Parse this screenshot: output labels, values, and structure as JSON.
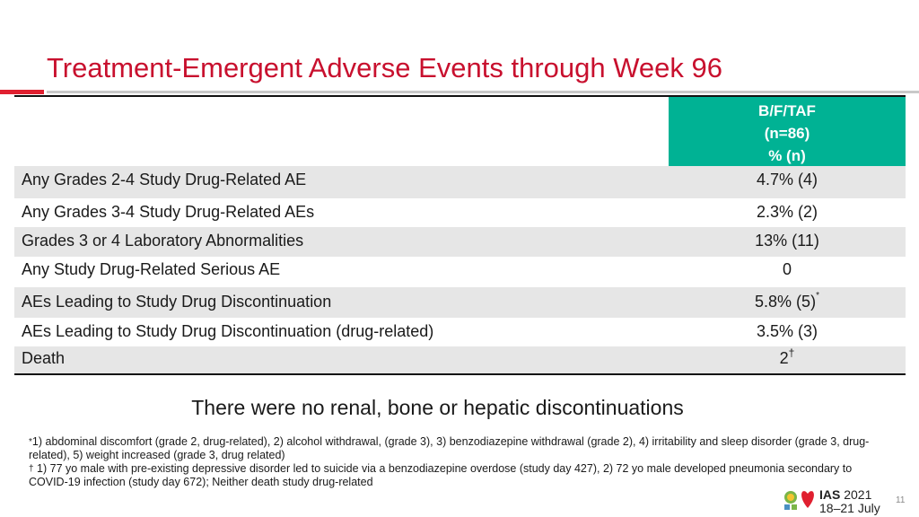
{
  "title": "Treatment-Emergent Adverse Events through Week 96",
  "table": {
    "header": [
      "B/F/TAF",
      "(n=86)",
      "% (n)"
    ],
    "rows": [
      {
        "label": "Any Grades 2-4 Study Drug-Related AE",
        "value": "4.7% (4)",
        "mark": ""
      },
      {
        "label": "Any Grades 3-4 Study Drug-Related AEs",
        "value": "2.3% (2)",
        "mark": ""
      },
      {
        "label": "Grades 3 or 4 Laboratory Abnormalities",
        "value": "13% (11)",
        "mark": ""
      },
      {
        "label": "Any Study Drug-Related Serious AE",
        "value": "0",
        "mark": ""
      },
      {
        "label": "AEs Leading to Study Drug Discontinuation",
        "value": "5.8% (5)",
        "mark": "*"
      },
      {
        "label": "AEs Leading to Study Drug Discontinuation (drug-related)",
        "value": "3.5% (3)",
        "mark": ""
      },
      {
        "label": "Death",
        "value": "2",
        "mark": "†"
      }
    ]
  },
  "statement": "There were no renal, bone or hepatic discontinuations",
  "footnotes": [
    {
      "mark": "*",
      "text": "1) abdominal discomfort (grade 2, drug-related),  2) alcohol withdrawal, (grade 3),  3) benzodiazepine withdrawal (grade 2),  4) irritability and sleep disorder (grade 3, drug-related), 5) weight increased (grade 3, drug related)"
    },
    {
      "mark": "†",
      "text": " 1) 77 yo male with pre-existing depressive disorder led to suicide via a benzodiazepine overdose (study day 427),  2) 72 yo male developed pneumonia secondary to COVID-19 infection (study day 672); Neither death study drug-related"
    }
  ],
  "logo": {
    "name": "IAS",
    "year": "2021",
    "dates": "18–21 July"
  },
  "page_number": "11",
  "colors": {
    "title": "#c8102e",
    "header_bg": "#00b294",
    "row_shade": "#e6e6e6"
  }
}
